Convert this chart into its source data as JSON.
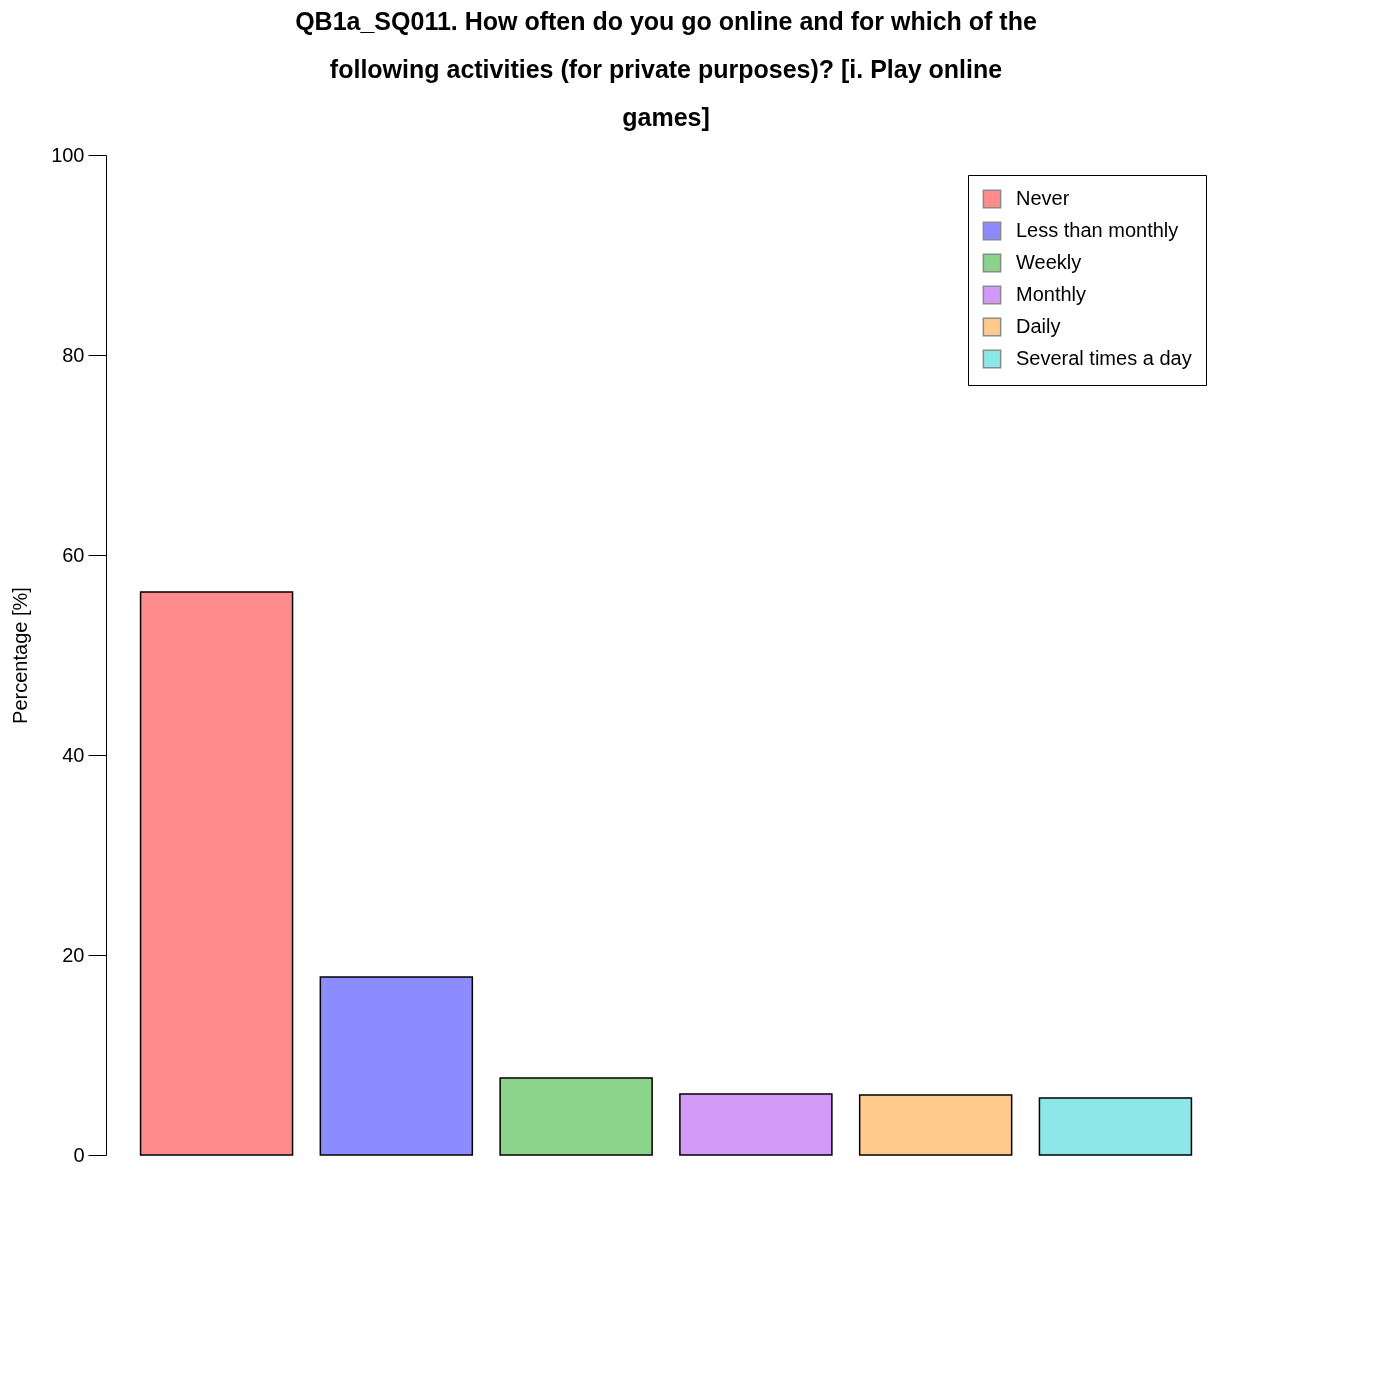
{
  "chart_data": {
    "type": "bar",
    "title": "QB1a_SQ011. How often do you go online and for which of the following activities (for private purposes)? [i. Play online games]",
    "ylabel": "Percentage [%]",
    "categories": [
      null,
      null,
      null,
      null,
      null,
      null
    ],
    "series": [
      {
        "name": "Never",
        "color": "#ff0000",
        "values": [
          56.3,
          null,
          null,
          null,
          null,
          null
        ]
      },
      {
        "name": "Less than monthly",
        "color": "#0000ff",
        "values": [
          null,
          17.8,
          null,
          null,
          null,
          null
        ]
      },
      {
        "name": "Weekly",
        "color": "#00a000",
        "values": [
          null,
          null,
          7.7,
          null,
          null,
          null
        ]
      },
      {
        "name": "Monthly",
        "color": "#a020f0",
        "values": [
          null,
          null,
          null,
          6.1,
          null,
          null
        ]
      },
      {
        "name": "Daily",
        "color": "#ff8c00",
        "values": [
          null,
          null,
          null,
          null,
          6.0,
          null
        ]
      },
      {
        "name": "Several times a day",
        "color": "#00cdcd",
        "values": [
          null,
          null,
          null,
          null,
          null,
          5.7
        ]
      }
    ],
    "ylim": [
      0,
      100
    ],
    "yticks": [
      0,
      20,
      40,
      60,
      80,
      100
    ],
    "stacked": true,
    "grid": false,
    "legend": "top right",
    "tick_labels": "y"
  }
}
